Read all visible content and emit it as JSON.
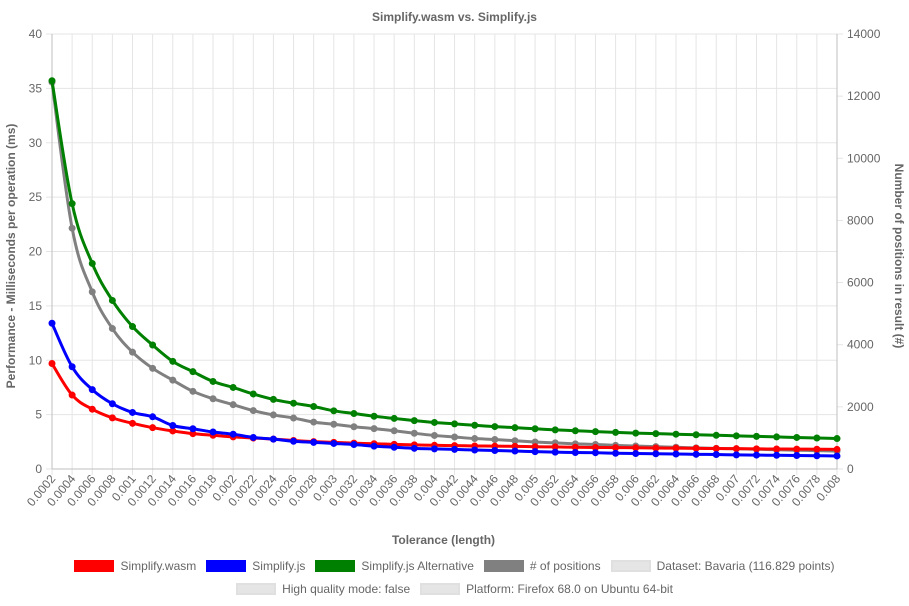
{
  "chart_data": {
    "type": "line",
    "title": "Simplify.wasm vs. Simplify.js",
    "xlabel": "Tolerance (length)",
    "ylabel_left": "Performance - Milliseconds per operation (ms)",
    "ylabel_right": "Number of positions in result (#)",
    "ylim_left": [
      0,
      40
    ],
    "ylim_right": [
      0,
      14000
    ],
    "yticks_left": [
      "0",
      "5",
      "10",
      "15",
      "20",
      "25",
      "30",
      "35",
      "40"
    ],
    "yticks_right": [
      "0",
      "2000",
      "4000",
      "6000",
      "8000",
      "10000",
      "12000",
      "14000"
    ],
    "grid": true,
    "legend_position": "bottom",
    "x": [
      "0.0002",
      "0.0004",
      "0.0006",
      "0.0008",
      "0.001",
      "0.0012",
      "0.0014",
      "0.0016",
      "0.0018",
      "0.002",
      "0.0022",
      "0.0024",
      "0.0026",
      "0.0028",
      "0.003",
      "0.0032",
      "0.0034",
      "0.0036",
      "0.0038",
      "0.004",
      "0.0042",
      "0.0044",
      "0.0046",
      "0.0048",
      "0.005",
      "0.0052",
      "0.0054",
      "0.0056",
      "0.0058",
      "0.006",
      "0.0062",
      "0.0064",
      "0.0066",
      "0.0068",
      "0.007",
      "0.0072",
      "0.0074",
      "0.0076",
      "0.0078",
      "0.008"
    ],
    "series": [
      {
        "name": "Simplify.wasm",
        "color": "#ff0000",
        "axis": "left",
        "values": [
          9.7,
          6.8,
          5.5,
          4.7,
          4.2,
          3.8,
          3.5,
          3.25,
          3.1,
          2.95,
          2.85,
          2.75,
          2.62,
          2.52,
          2.45,
          2.38,
          2.32,
          2.27,
          2.22,
          2.18,
          2.15,
          2.12,
          2.1,
          2.08,
          2.05,
          2.03,
          2.0,
          1.98,
          1.97,
          1.95,
          1.93,
          1.92,
          1.9,
          1.88,
          1.87,
          1.85,
          1.84,
          1.83,
          1.82,
          1.8
        ]
      },
      {
        "name": "Simplify.js",
        "color": "#0000ff",
        "axis": "left",
        "values": [
          13.4,
          9.4,
          7.3,
          6.0,
          5.2,
          4.8,
          4.0,
          3.7,
          3.4,
          3.2,
          2.9,
          2.75,
          2.55,
          2.45,
          2.35,
          2.25,
          2.1,
          2.0,
          1.9,
          1.85,
          1.8,
          1.75,
          1.7,
          1.65,
          1.6,
          1.55,
          1.52,
          1.5,
          1.45,
          1.42,
          1.4,
          1.38,
          1.35,
          1.33,
          1.3,
          1.28,
          1.26,
          1.24,
          1.22,
          1.2
        ]
      },
      {
        "name": "Simplify.js Alternative",
        "color": "#008000",
        "axis": "left",
        "values": [
          35.7,
          24.4,
          18.9,
          15.5,
          13.1,
          11.4,
          9.9,
          8.95,
          8.05,
          7.5,
          6.9,
          6.4,
          6.05,
          5.75,
          5.35,
          5.1,
          4.85,
          4.65,
          4.45,
          4.28,
          4.15,
          4.02,
          3.9,
          3.8,
          3.7,
          3.6,
          3.52,
          3.44,
          3.37,
          3.3,
          3.25,
          3.2,
          3.15,
          3.1,
          3.05,
          3.0,
          2.95,
          2.9,
          2.85,
          2.8
        ]
      },
      {
        "name": "# of positions",
        "color": "#808080",
        "axis": "right",
        "values": [
          12450,
          7750,
          5700,
          4520,
          3760,
          3240,
          2860,
          2500,
          2260,
          2070,
          1880,
          1740,
          1640,
          1510,
          1440,
          1360,
          1300,
          1230,
          1150,
          1080,
          1030,
          980,
          950,
          910,
          870,
          840,
          810,
          790,
          760,
          740,
          720,
          700,
          680,
          665,
          650,
          635,
          620,
          605,
          590,
          575
        ]
      }
    ],
    "extra_legend": [
      "Dataset: Bavaria (116.829 points)",
      "High quality mode: false",
      "Platform: Firefox 68.0 on Ubuntu 64-bit"
    ]
  }
}
